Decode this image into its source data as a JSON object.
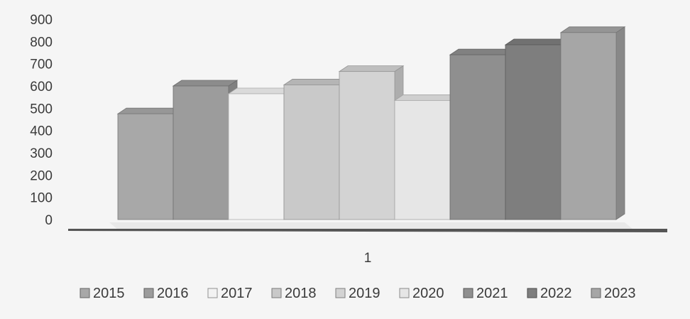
{
  "chart_data": {
    "type": "bar",
    "categories": [
      "1"
    ],
    "series": [
      {
        "name": "2015",
        "values": [
          475
        ],
        "color": "#a8a8a8"
      },
      {
        "name": "2016",
        "values": [
          600
        ],
        "color": "#9c9c9c"
      },
      {
        "name": "2017",
        "values": [
          565
        ],
        "color": "#f2f2f2"
      },
      {
        "name": "2018",
        "values": [
          605
        ],
        "color": "#c9c9c9"
      },
      {
        "name": "2019",
        "values": [
          665
        ],
        "color": "#d3d3d3"
      },
      {
        "name": "2020",
        "values": [
          535
        ],
        "color": "#e6e6e6"
      },
      {
        "name": "2021",
        "values": [
          740
        ],
        "color": "#8f8f8f"
      },
      {
        "name": "2022",
        "values": [
          785
        ],
        "color": "#7e7e7e"
      },
      {
        "name": "2023",
        "values": [
          840
        ],
        "color": "#a6a6a6"
      }
    ],
    "y_ticks": [
      "0",
      "100",
      "200",
      "300",
      "400",
      "500",
      "600",
      "700",
      "800",
      "900"
    ],
    "ylim": [
      0,
      900
    ],
    "title": "",
    "xlabel": "",
    "ylabel": "",
    "grid": false,
    "legend_position": "bottom"
  }
}
